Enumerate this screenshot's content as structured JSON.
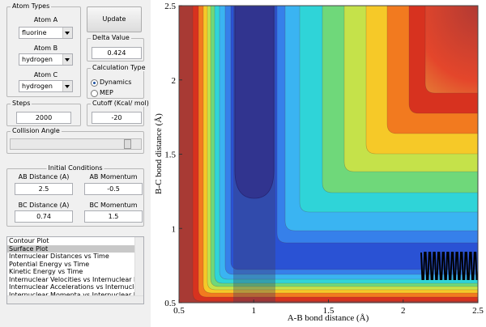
{
  "atom_types": {
    "title": "Atom Types",
    "atom_a_label": "Atom A",
    "atom_a": "fluorine",
    "atom_b_label": "Atom B",
    "atom_b": "hydrogen",
    "atom_c_label": "Atom C",
    "atom_c": "hydrogen"
  },
  "update_button": "Update",
  "delta_value": {
    "label": "Delta Value",
    "value": "0.424"
  },
  "calculation_type": {
    "title": "Calculation Type",
    "options": [
      "Dynamics",
      "MEP"
    ],
    "selected": 0
  },
  "steps": {
    "label": "Steps",
    "value": "2000"
  },
  "cutoff": {
    "label": "Cutoff (Kcal/ mol)",
    "value": "-20"
  },
  "collision_angle": {
    "label": "Collision Angle"
  },
  "initial_conditions": {
    "title": "Initial Conditions",
    "ab_distance_label": "AB Distance (A)",
    "ab_distance": "2.5",
    "ab_momentum_label": "AB Momentum",
    "ab_momentum": "-0.5",
    "bc_distance_label": "BC Distance (A)",
    "bc_distance": "0.74",
    "bc_momentum_label": "BC Momentum",
    "bc_momentum": "1.5"
  },
  "plot_list": {
    "items": [
      "Contour Plot",
      "Surface Plot",
      "Internuclear Distances vs Time",
      "Potential Energy vs Time",
      "Kinetic Energy vs Time",
      "Internuclear Velocities vs Internuclear Distance",
      "Internuclear Accelerations vs Internuclear Distance",
      "Internuclear Momenta vs Internuclear Distance"
    ],
    "selected": 1
  },
  "chart_data": {
    "type": "contour",
    "xlabel": "A-B bond distance (Å)",
    "ylabel": "B-C bond distance (Å)",
    "xlim": [
      0.5,
      2.5
    ],
    "xticks": [
      0.5,
      1,
      1.5,
      2,
      2.5
    ],
    "ylim": [
      0.5,
      2.5
    ],
    "yticks": [
      0.5,
      1,
      1.5,
      2,
      2.5
    ]
  }
}
